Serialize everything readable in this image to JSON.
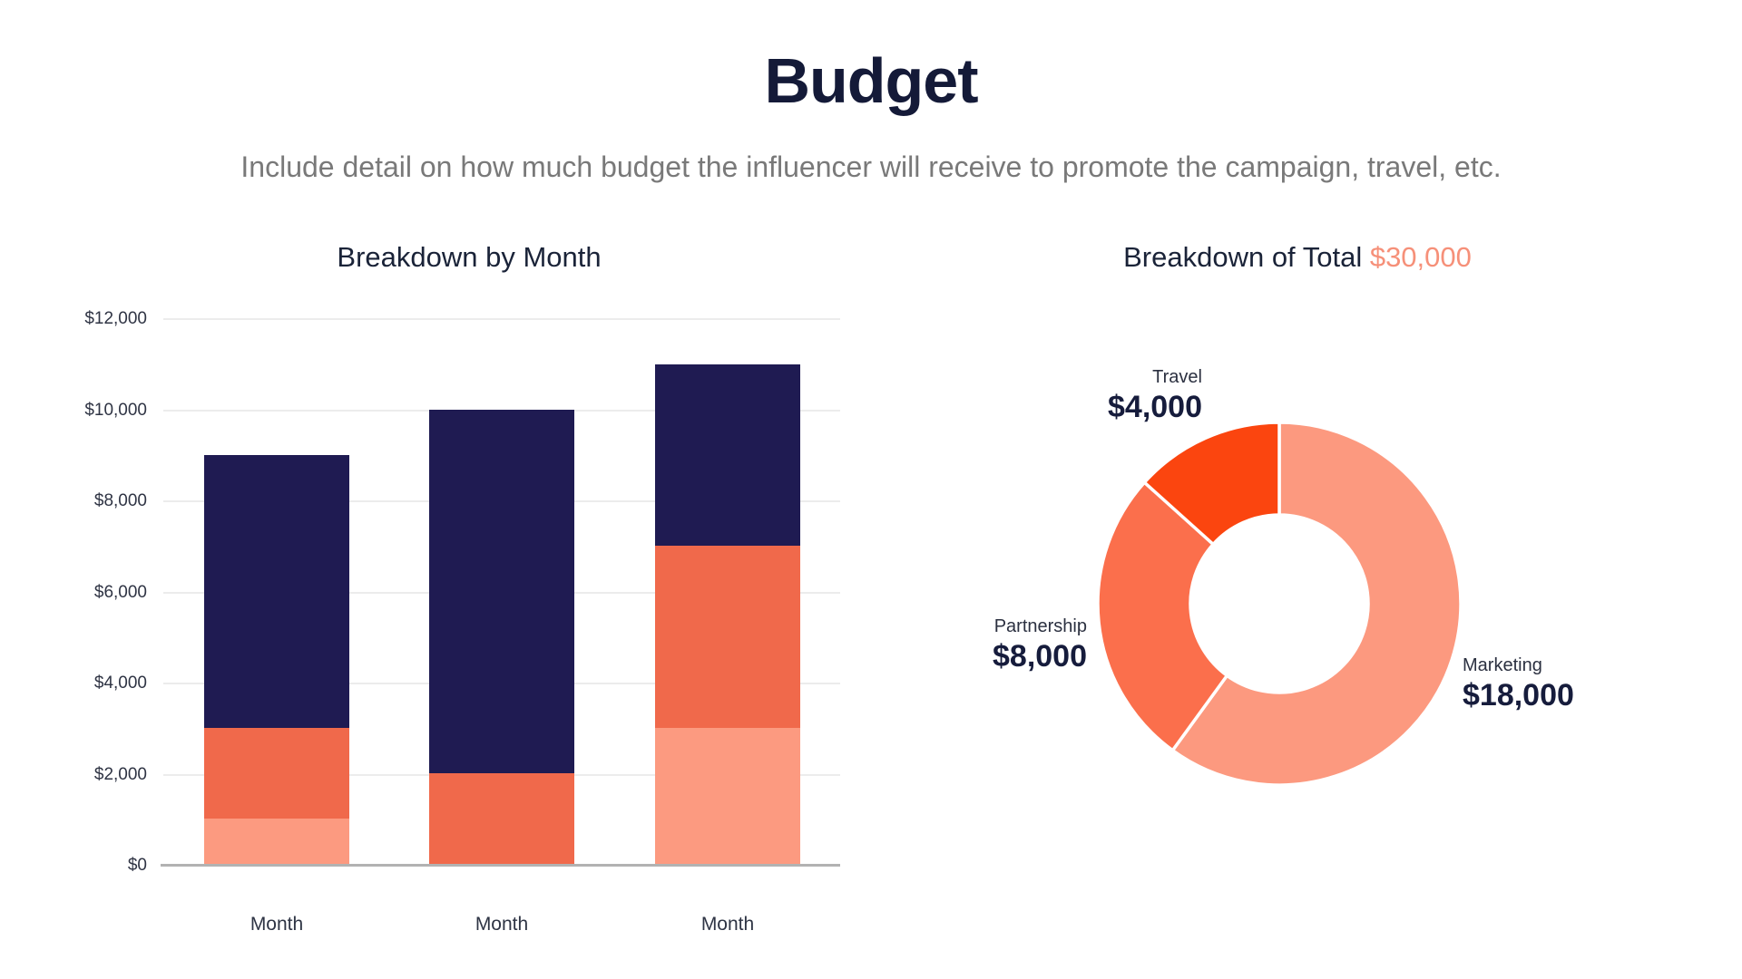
{
  "page": {
    "title": "Budget",
    "subtitle": "Include detail on how much budget the influencer will receive to promote the campaign, travel, etc.",
    "accent_color": "#f69079",
    "background_color": "#ffffff",
    "text_color_dark": "#141a38",
    "text_color_muted": "#797979"
  },
  "chart_data": [
    {
      "type": "bar",
      "stacked": true,
      "title": "Breakdown by Month",
      "categories": [
        "Month",
        "Month",
        "Month"
      ],
      "series": [
        {
          "name": "bottom-segment-salmon",
          "color": "#fc9a80",
          "values": [
            1000,
            0,
            3000
          ]
        },
        {
          "name": "middle-segment-orange",
          "color": "#f0694b",
          "values": [
            2000,
            2000,
            4000
          ]
        },
        {
          "name": "top-segment-navy",
          "color": "#1f1b52",
          "values": [
            6000,
            8000,
            4000
          ]
        }
      ],
      "bar_totals": [
        9000,
        10000,
        11000
      ],
      "xlabel": "",
      "ylabel": "",
      "ylim": [
        0,
        12000
      ],
      "y_tick_labels": [
        "$0",
        "$2,000",
        "$4,000",
        "$6,000",
        "$8,000",
        "$10,000",
        "$12,000"
      ],
      "grid": true,
      "gridline_color": "#ececec",
      "axis_line_color": "#b2b2b2",
      "legend": false
    },
    {
      "type": "donut",
      "title_parts": {
        "prefix": "Breakdown of Total",
        "total": "$30,000"
      },
      "total": 30000,
      "segments": [
        {
          "label": "Marketing",
          "value": 18000,
          "display": "$18,000",
          "color": "#fc997f"
        },
        {
          "label": "Partnership",
          "value": 8000,
          "display": "$8,000",
          "color": "#fb6f4c"
        },
        {
          "label": "Travel",
          "value": 4000,
          "display": "$4,000",
          "color": "#fb450f"
        }
      ],
      "start_angle_deg": 0,
      "direction": "clockwise",
      "inner_radius_ratio": 0.49,
      "slice_gap_color": "#ffffff",
      "legend": false
    }
  ]
}
